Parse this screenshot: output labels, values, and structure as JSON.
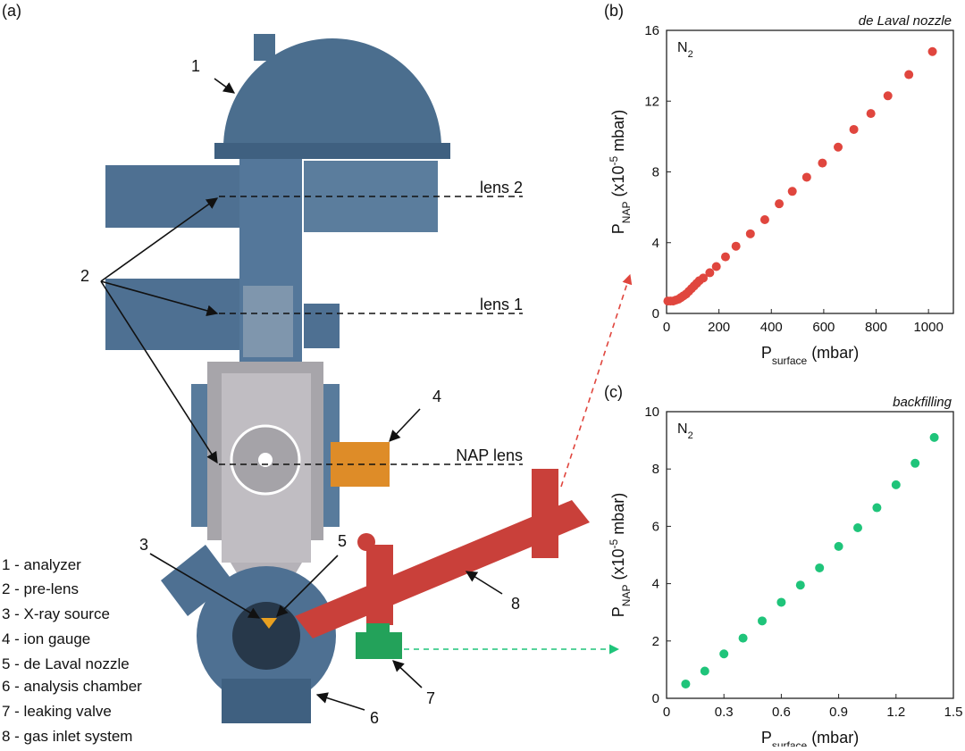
{
  "diagram": {
    "panel_label": "(a)",
    "callouts": [
      "1",
      "2",
      "3",
      "4",
      "5",
      "6",
      "7",
      "8"
    ],
    "lens_labels": [
      "lens 2",
      "lens 1",
      "NAP lens"
    ],
    "legend": [
      "1 - analyzer",
      "2 - pre-lens",
      "3 - X-ray source",
      "4 - ion gauge",
      "5 - de Laval nozzle",
      "6 - analysis chamber",
      "7 - leaking valve",
      "8 - gas inlet system"
    ]
  },
  "chart_data": [
    {
      "type": "scatter",
      "panel_label": "(b)",
      "title": "de Laval nozzle",
      "annotation": [
        "N",
        "2"
      ],
      "xlabel": [
        "P",
        "surface",
        " (mbar)"
      ],
      "ylabel": [
        "P",
        "NAP",
        " (x10",
        "-5",
        " mbar)"
      ],
      "color": "#e0463e",
      "x": [
        5,
        15,
        25,
        35,
        45,
        55,
        65,
        75,
        85,
        95,
        105,
        115,
        125,
        140,
        165,
        190,
        225,
        265,
        320,
        375,
        430,
        480,
        535,
        595,
        655,
        715,
        780,
        845,
        925,
        1015
      ],
      "y": [
        0.7,
        0.7,
        0.7,
        0.75,
        0.8,
        0.9,
        1.0,
        1.1,
        1.25,
        1.4,
        1.55,
        1.7,
        1.85,
        2.0,
        2.3,
        2.65,
        3.2,
        3.8,
        4.5,
        5.3,
        6.2,
        6.9,
        7.7,
        8.5,
        9.4,
        10.4,
        11.3,
        12.3,
        13.5,
        14.8
      ],
      "xlim": [
        0,
        1095
      ],
      "xticks": [
        0,
        200,
        400,
        600,
        800,
        1000
      ],
      "ylim": [
        0,
        16
      ],
      "yticks": [
        0,
        4,
        8,
        12,
        16
      ]
    },
    {
      "type": "scatter",
      "panel_label": "(c)",
      "title": "backfilling",
      "annotation": [
        "N",
        "2"
      ],
      "xlabel": [
        "P",
        "surface",
        " (mbar)"
      ],
      "ylabel": [
        "P",
        "NAP",
        " (x10",
        "-5",
        " mbar)"
      ],
      "color": "#1fc47a",
      "x": [
        0.1,
        0.2,
        0.3,
        0.4,
        0.5,
        0.6,
        0.7,
        0.8,
        0.9,
        1.0,
        1.1,
        1.2,
        1.3,
        1.4
      ],
      "y": [
        0.5,
        0.95,
        1.55,
        2.1,
        2.7,
        3.35,
        3.95,
        4.55,
        5.3,
        5.95,
        6.65,
        7.45,
        8.2,
        9.1
      ],
      "xlim": [
        0,
        1.5
      ],
      "xticks": [
        0,
        0.3,
        0.6,
        0.9,
        1.2,
        1.5
      ],
      "ylim": [
        0,
        10
      ],
      "yticks": [
        0,
        2,
        4,
        6,
        8,
        10
      ]
    }
  ]
}
